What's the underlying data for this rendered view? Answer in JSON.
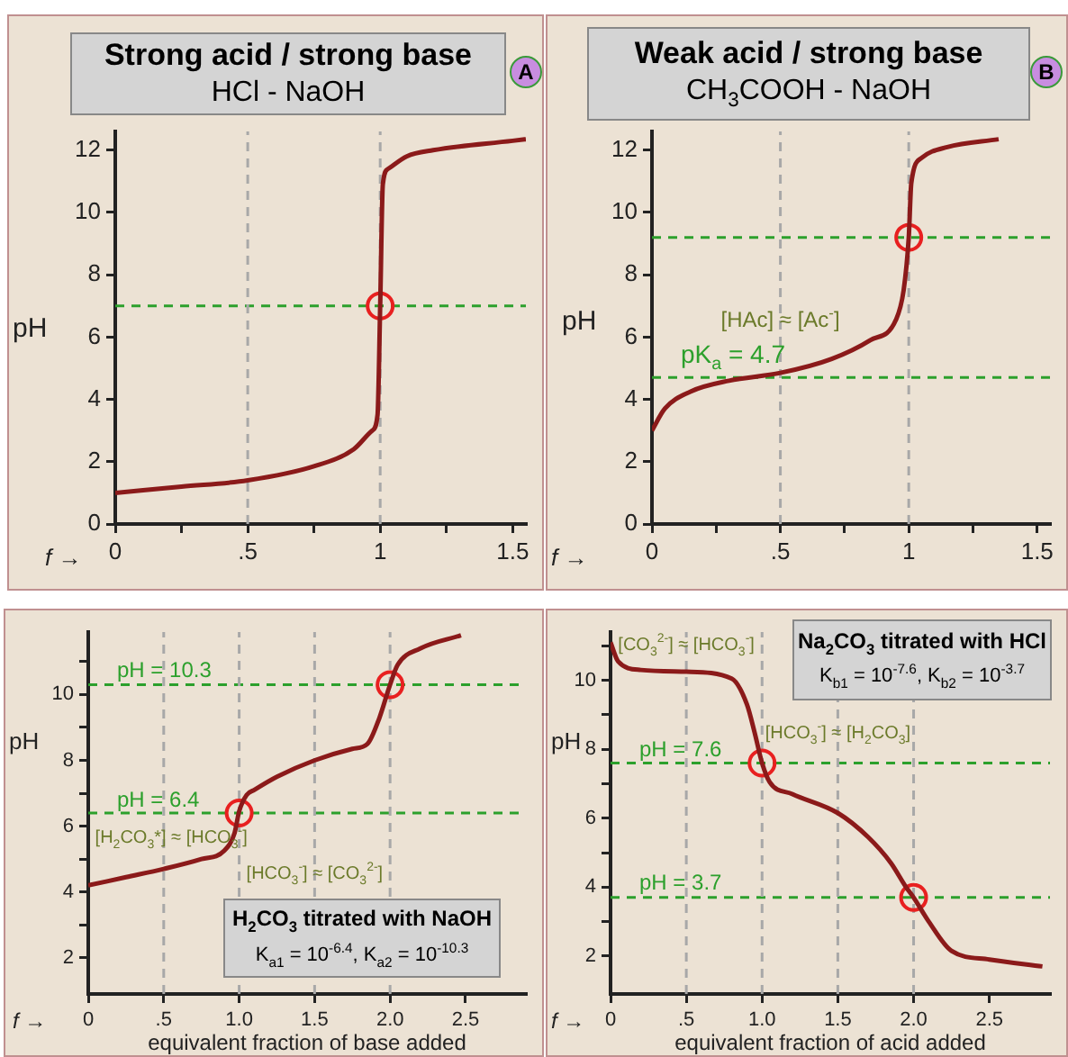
{
  "chart_data": [
    {
      "type": "line",
      "title": "Strong acid / strong base",
      "subtitle": "HCl - NaOH",
      "xlabel": "f →",
      "ylabel": "pH",
      "annotations": [
        "A"
      ],
      "xlim": [
        0,
        1.55
      ],
      "ylim": [
        0,
        12.6
      ],
      "xticks": [
        0,
        {
          "value": 0.25,
          "label": null
        },
        {
          "value": 0.5,
          "label": ".5"
        },
        {
          "value": 0.75,
          "label": null
        },
        1,
        {
          "value": 1.25,
          "label": null
        },
        1.5
      ],
      "yticks": [
        0,
        2,
        4,
        6,
        8,
        10,
        12
      ],
      "ref_lines": [
        {
          "axis": "y",
          "value": 7,
          "color": "#2ca02c",
          "line_style": "dashed"
        },
        {
          "axis": "x",
          "value": 0.5,
          "color": "#a8a8a8",
          "line_style": "dashed"
        },
        {
          "axis": "x",
          "value": 1,
          "color": "#a8a8a8",
          "line_style": "dashed"
        }
      ],
      "series": [
        {
          "type": "line",
          "color": "#8b1a1a",
          "marker": "none",
          "x": [
            0,
            0.25,
            0.5,
            0.75,
            0.9,
            0.97,
            0.99,
            1.0,
            1.01,
            1.03,
            1.1,
            1.2,
            1.5,
            1.55
          ],
          "values": [
            1.0,
            1.2,
            1.4,
            1.85,
            2.4,
            3.0,
            3.5,
            7,
            10.9,
            11.4,
            11.8,
            12.0,
            12.3,
            12.35
          ]
        },
        {
          "type": "scatter",
          "color": "#e82020",
          "marker": "circle",
          "x": [
            1
          ],
          "values": [
            7
          ]
        }
      ]
    },
    {
      "type": "line",
      "title": "Weak acid / strong base",
      "subtitle": "CH$_{3}$COOH - NaOH",
      "xlabel": "f →",
      "ylabel": "pH",
      "annotations": [
        "B",
        {
          "text": "[HAc] ≈ [Ac$^{-}$]",
          "x": 0.5,
          "y": 6.6
        }
      ],
      "xlim": [
        0,
        1.55
      ],
      "ylim": [
        0,
        12.6
      ],
      "xticks": [
        0,
        {
          "value": 0.25,
          "label": null
        },
        {
          "value": 0.5,
          "label": ".5"
        },
        {
          "value": 0.75,
          "label": null
        },
        1,
        {
          "value": 1.25,
          "label": null
        },
        1.5
      ],
      "yticks": [
        0,
        2,
        4,
        6,
        8,
        10,
        12
      ],
      "ref_lines": [
        {
          "axis": "y",
          "value": 9.2,
          "color": "#2ca02c",
          "line_style": "dashed"
        },
        {
          "axis": "y",
          "value": 4.7,
          "label": "p$_{}$K$_{a}$ = 4.7",
          "color": "#2ca02c",
          "line_style": "dashed"
        },
        {
          "axis": "x",
          "value": 0.5,
          "color": "#a8a8a8",
          "line_style": "dashed"
        },
        {
          "axis": "x",
          "value": 1,
          "color": "#a8a8a8",
          "line_style": "dashed"
        }
      ],
      "series": [
        {
          "type": "line",
          "color": "#8b1a1a",
          "marker": "none",
          "x": [
            0,
            0.05,
            0.15,
            0.3,
            0.5,
            0.7,
            0.85,
            0.95,
            0.98,
            1.0,
            1.01,
            1.05,
            1.15,
            1.35
          ],
          "values": [
            3.0,
            3.7,
            4.25,
            4.6,
            4.85,
            5.3,
            5.9,
            6.55,
            7.5,
            9.2,
            10.95,
            11.75,
            12.1,
            12.35
          ]
        },
        {
          "type": "scatter",
          "color": "#e82020",
          "marker": "circle",
          "x": [
            1
          ],
          "values": [
            9.2
          ]
        }
      ]
    },
    {
      "type": "line",
      "title": "H$_{2}$CO$_{3}$ titrated with NaOH",
      "subtitle": "K$_{a1}$ = 10$^{-6.4}$, K$_{a2}$ = 10$^{-10.3}$",
      "xlabel": "equivalent fraction of base added",
      "ylabel": "pH",
      "annotations": [
        "f →",
        {
          "text": "[H$_{2}$CO$_{3}$*] ≈ [HCO$_{3}$$^{-}$]",
          "x": 0.55,
          "y": 5.6
        },
        {
          "text": "[HCO$_{3}$$^{-}$] ≈ [CO$_{3}$$^{2-}$]",
          "x": 1.5,
          "y": 4.5
        }
      ],
      "xlim": [
        0,
        2.9
      ],
      "ylim": [
        0.9,
        11.9
      ],
      "xticks": [
        0,
        {
          "value": 0.5,
          "label": ".5"
        },
        {
          "value": 1,
          "label": "1.0"
        },
        1.5,
        {
          "value": 2,
          "label": "2.0"
        },
        2.5
      ],
      "yticks": [
        2,
        {
          "value": 3,
          "label": null
        },
        4,
        {
          "value": 5,
          "label": null
        },
        6,
        {
          "value": 7,
          "label": null
        },
        8,
        {
          "value": 9,
          "label": null
        },
        10,
        {
          "value": 11,
          "label": null
        }
      ],
      "ref_lines": [
        {
          "axis": "y",
          "value": 10.3,
          "label": "pH = 10.3",
          "color": "#2ca02c",
          "line_style": "dashed"
        },
        {
          "axis": "y",
          "value": 6.4,
          "label": "pH = 6.4",
          "color": "#2ca02c",
          "line_style": "dashed"
        },
        {
          "axis": "x",
          "value": 0.5,
          "color": "#a8a8a8",
          "line_style": "dashed"
        },
        {
          "axis": "x",
          "value": 1,
          "color": "#a8a8a8",
          "line_style": "dashed"
        },
        {
          "axis": "x",
          "value": 1.5,
          "color": "#a8a8a8",
          "line_style": "dashed"
        },
        {
          "axis": "x",
          "value": 2,
          "color": "#a8a8a8",
          "line_style": "dashed"
        }
      ],
      "series": [
        {
          "type": "line",
          "color": "#8b1a1a",
          "marker": "none",
          "x": [
            0,
            0.25,
            0.5,
            0.75,
            0.9,
            0.97,
            1.0,
            1.05,
            1.1,
            1.25,
            1.5,
            1.75,
            1.85,
            1.93,
            2.0,
            2.05,
            2.2,
            2.47
          ],
          "values": [
            4.2,
            4.45,
            4.7,
            5.0,
            5.25,
            5.8,
            6.45,
            6.95,
            7.1,
            7.5,
            8.0,
            8.35,
            8.5,
            9.3,
            10.3,
            10.9,
            11.4,
            11.8
          ]
        },
        {
          "type": "scatter",
          "color": "#e82020",
          "marker": "circle",
          "x": [
            1,
            2
          ],
          "values": [
            6.4,
            10.3
          ]
        }
      ]
    },
    {
      "type": "line",
      "title": "Na$_{2}$CO$_{3}$ titrated with HCl",
      "subtitle": "K$_{b1}$ = 10$^{-7.6}$, K$_{b2}$ = 10$^{-3.7}$",
      "xlabel": "equivalent fraction of acid added",
      "ylabel": "pH",
      "annotations": [
        "f →",
        {
          "text": "[CO$_{3}$$^{2-}$] ≈ [HCO$_{3}$$^{-}$]",
          "x": 0.5,
          "y": 11.0
        },
        {
          "text": "[HCO$_{3}$$^{-}$] ≈ [H$_{2}$CO$_{3}$]",
          "x": 1.5,
          "y": 8.4
        }
      ],
      "xlim": [
        0,
        2.9
      ],
      "ylim": [
        0.9,
        11.4
      ],
      "xticks": [
        0,
        {
          "value": 0.5,
          "label": ".5"
        },
        {
          "value": 1,
          "label": "1.0"
        },
        1.5,
        {
          "value": 2,
          "label": "2.0"
        },
        2.5
      ],
      "yticks": [
        2,
        {
          "value": 3,
          "label": null
        },
        4,
        {
          "value": 5,
          "label": null
        },
        6,
        {
          "value": 7,
          "label": null
        },
        8,
        {
          "value": 9,
          "label": null
        },
        10,
        {
          "value": 11,
          "label": null
        }
      ],
      "ref_lines": [
        {
          "axis": "y",
          "value": 7.6,
          "label": "pH = 7.6",
          "color": "#2ca02c",
          "line_style": "dashed"
        },
        {
          "axis": "y",
          "value": 3.7,
          "label": "pH = 3.7",
          "color": "#2ca02c",
          "line_style": "dashed"
        },
        {
          "axis": "x",
          "value": 0.5,
          "color": "#a8a8a8",
          "line_style": "dashed"
        },
        {
          "axis": "x",
          "value": 1,
          "color": "#a8a8a8",
          "line_style": "dashed"
        },
        {
          "axis": "x",
          "value": 1.5,
          "color": "#a8a8a8",
          "line_style": "dashed"
        },
        {
          "axis": "x",
          "value": 2,
          "color": "#a8a8a8",
          "line_style": "dashed"
        }
      ],
      "series": [
        {
          "type": "line",
          "color": "#8b1a1a",
          "marker": "none",
          "x": [
            0,
            0.05,
            0.2,
            0.5,
            0.8,
            0.9,
            0.95,
            1.0,
            1.05,
            1.2,
            1.5,
            1.7,
            1.85,
            1.95,
            2.0,
            2.1,
            2.25,
            2.5,
            2.85
          ],
          "values": [
            11.1,
            10.55,
            10.3,
            10.25,
            10.05,
            9.3,
            8.5,
            7.6,
            7.05,
            6.7,
            6.15,
            5.45,
            4.7,
            4.0,
            3.7,
            3.0,
            2.15,
            1.9,
            1.7
          ]
        },
        {
          "type": "scatter",
          "color": "#e82020",
          "marker": "circle",
          "x": [
            1,
            2
          ],
          "values": [
            7.6,
            3.7
          ]
        }
      ]
    }
  ]
}
